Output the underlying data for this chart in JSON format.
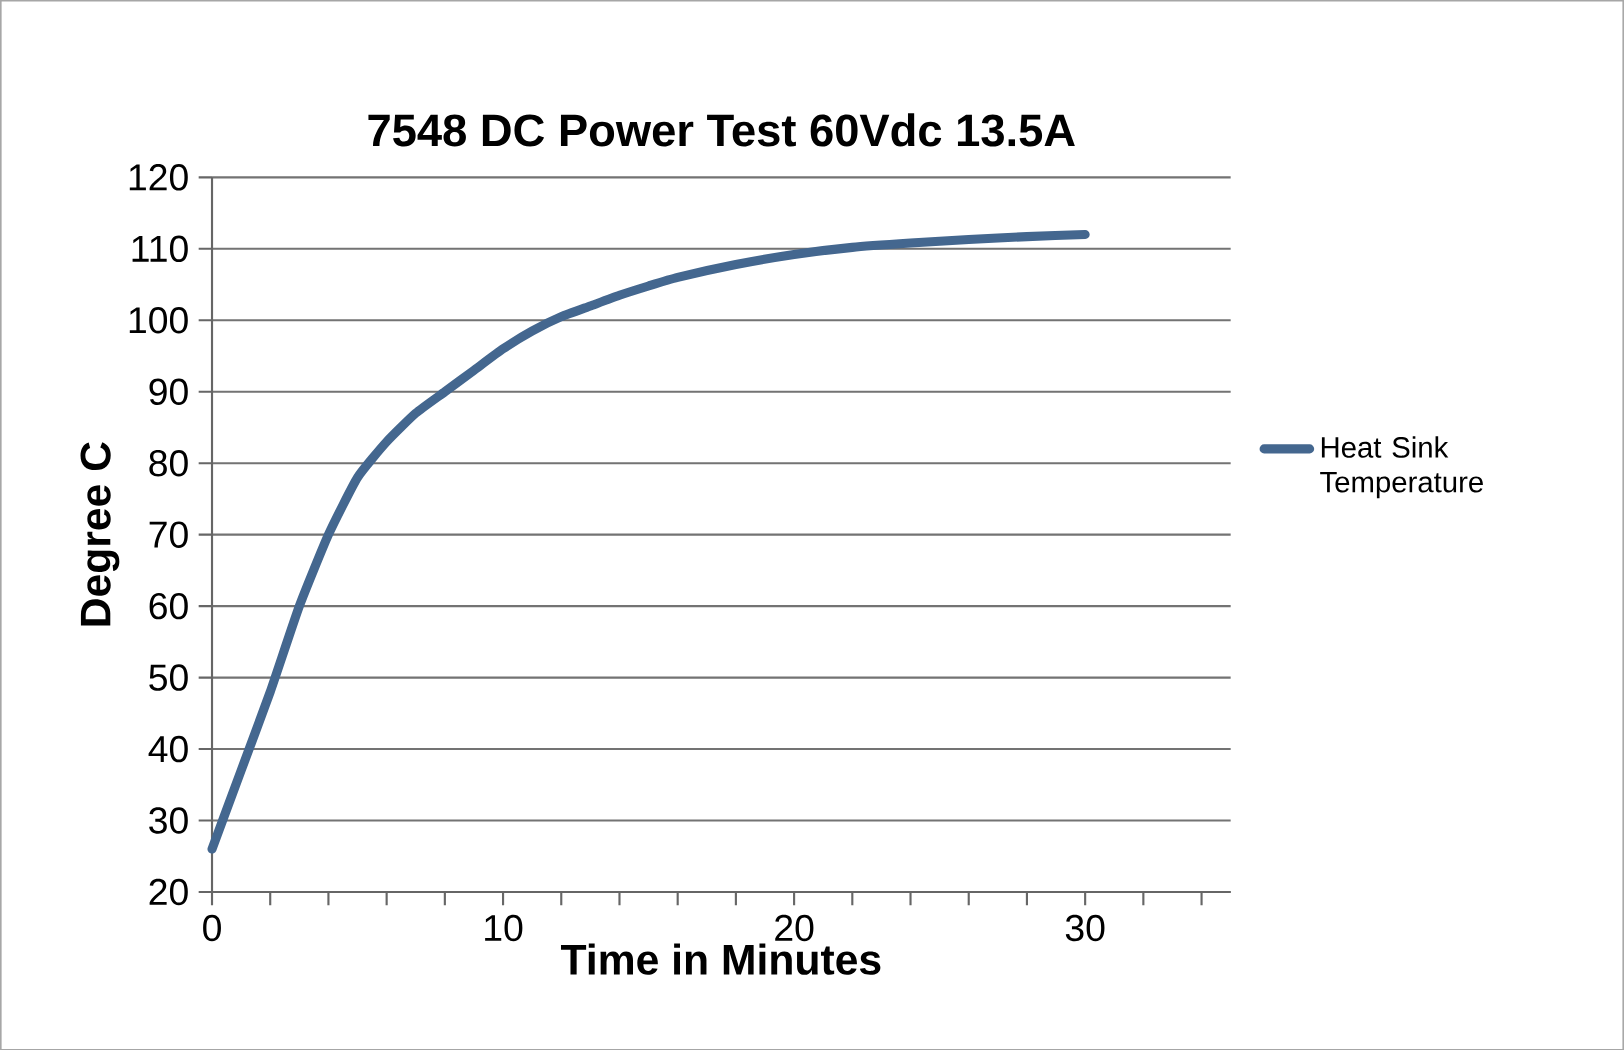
{
  "chart_data": {
    "type": "line",
    "title": "7548 DC Power Test    60Vdc 13.5A",
    "xlabel": "Time in Minutes",
    "ylabel": "Degree C",
    "series": [
      {
        "name": "Heat Sink Temperature",
        "color": "#44678f",
        "x": [
          0,
          1,
          2,
          3,
          4,
          5,
          6,
          7,
          8,
          9,
          10,
          11,
          12,
          13,
          14,
          15,
          16,
          18,
          20,
          22,
          24,
          26,
          28,
          30
        ],
        "values": [
          26,
          37,
          48,
          60,
          70,
          78,
          83,
          87,
          90,
          93,
          96,
          98.5,
          100.5,
          102,
          103.5,
          104.8,
          106,
          107.8,
          109.2,
          110.2,
          110.8,
          111.3,
          111.7,
          112
        ]
      }
    ],
    "xlim": [
      0,
      35
    ],
    "ylim": [
      20,
      120
    ],
    "xticks": [
      0,
      {
        "value": 2,
        "label": null
      },
      {
        "value": 4,
        "label": null
      },
      {
        "value": 6,
        "label": null
      },
      {
        "value": 8,
        "label": null
      },
      10,
      {
        "value": 12,
        "label": null
      },
      {
        "value": 14,
        "label": null
      },
      {
        "value": 16,
        "label": null
      },
      {
        "value": 18,
        "label": null
      },
      20,
      {
        "value": 22,
        "label": null
      },
      {
        "value": 24,
        "label": null
      },
      {
        "value": 26,
        "label": null
      },
      {
        "value": 28,
        "label": null
      },
      30,
      {
        "value": 32,
        "label": null
      },
      {
        "value": 34,
        "label": null
      }
    ],
    "yticks": [
      20,
      30,
      40,
      50,
      60,
      70,
      80,
      90,
      100,
      110,
      120
    ],
    "grid": "y",
    "legend": "right",
    "marker": "none",
    "line_style": "solid"
  }
}
